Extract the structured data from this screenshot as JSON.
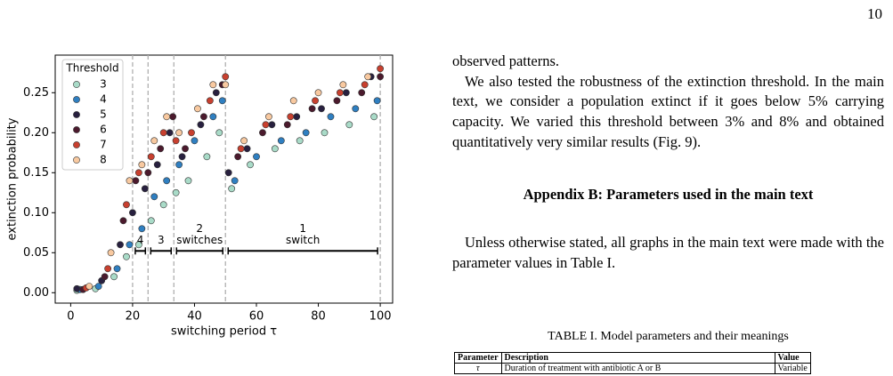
{
  "page_number": "10",
  "chart_data": {
    "type": "scatter",
    "xlabel": "switching period τ",
    "ylabel": "extinction probability",
    "xlim": [
      -5,
      104
    ],
    "ylim": [
      -0.013,
      0.297
    ],
    "xticks": [
      0,
      20,
      40,
      60,
      80,
      100
    ],
    "yticks": [
      {
        "value": 0,
        "label": "0.00"
      },
      {
        "value": 0.05,
        "label": "0.05"
      },
      {
        "value": 0.1,
        "label": "0.10"
      },
      {
        "value": 0.15,
        "label": "0.15"
      },
      {
        "value": 0.2,
        "label": "0.20"
      },
      {
        "value": 0.25,
        "label": "0.25"
      }
    ],
    "legend_title": "Threshold",
    "legend": "upper left",
    "vlines": [
      20,
      25,
      33.33,
      50,
      100
    ],
    "vline_color": "#b0b0b0",
    "regions": [
      {
        "label": [
          "4"
        ],
        "from": 20,
        "to": 25
      },
      {
        "label": [
          "3"
        ],
        "from": 25,
        "to": 33.33
      },
      {
        "label": [
          "2",
          "switches"
        ],
        "from": 33.33,
        "to": 50
      },
      {
        "label": [
          "1",
          "switch"
        ],
        "from": 50,
        "to": 100
      }
    ],
    "series": [
      {
        "name": "3",
        "color": "#a9dbc8",
        "x": [
          2,
          8,
          14,
          18,
          22,
          26,
          30,
          34,
          38,
          44,
          48,
          52,
          58,
          66,
          74,
          82,
          90,
          98
        ],
        "values": [
          0.003,
          0.005,
          0.02,
          0.045,
          0.06,
          0.09,
          0.11,
          0.125,
          0.14,
          0.17,
          0.2,
          0.13,
          0.16,
          0.18,
          0.19,
          0.2,
          0.21,
          0.22
        ]
      },
      {
        "name": "4",
        "color": "#2f7fc1",
        "x": [
          3,
          9,
          15,
          19,
          23,
          27,
          31,
          35,
          40,
          46,
          49,
          53,
          60,
          68,
          76,
          84,
          92,
          99
        ],
        "values": [
          0.004,
          0.008,
          0.03,
          0.06,
          0.08,
          0.12,
          0.14,
          0.16,
          0.19,
          0.22,
          0.24,
          0.14,
          0.17,
          0.19,
          0.2,
          0.22,
          0.23,
          0.24
        ]
      },
      {
        "name": "5",
        "color": "#28203f",
        "x": [
          2,
          10,
          16,
          20,
          24,
          28,
          32,
          36,
          42,
          47,
          51,
          57,
          65,
          73,
          81,
          89,
          97
        ],
        "values": [
          0.005,
          0.015,
          0.06,
          0.1,
          0.13,
          0.16,
          0.2,
          0.17,
          0.21,
          0.25,
          0.15,
          0.18,
          0.21,
          0.22,
          0.23,
          0.25,
          0.27
        ]
      },
      {
        "name": "6",
        "color": "#4b1a2d",
        "x": [
          4,
          11,
          17,
          21,
          25,
          29,
          33,
          37,
          43,
          49,
          54,
          62,
          70,
          78,
          86,
          94,
          100
        ],
        "values": [
          0.004,
          0.02,
          0.09,
          0.14,
          0.15,
          0.18,
          0.22,
          0.18,
          0.22,
          0.26,
          0.17,
          0.2,
          0.21,
          0.23,
          0.24,
          0.25,
          0.27
        ]
      },
      {
        "name": "7",
        "color": "#c8402f",
        "x": [
          5,
          12,
          18,
          22,
          26,
          30,
          34,
          39,
          45,
          50,
          55,
          63,
          71,
          79,
          87,
          95,
          100
        ],
        "values": [
          0.006,
          0.03,
          0.11,
          0.15,
          0.17,
          0.2,
          0.19,
          0.2,
          0.24,
          0.27,
          0.18,
          0.21,
          0.22,
          0.24,
          0.25,
          0.26,
          0.28
        ]
      },
      {
        "name": "8",
        "color": "#f8c9a0",
        "x": [
          6,
          13,
          19,
          23,
          27,
          31,
          35,
          41,
          46,
          50,
          56,
          64,
          72,
          80,
          88,
          96
        ],
        "values": [
          0.008,
          0.05,
          0.14,
          0.16,
          0.19,
          0.22,
          0.2,
          0.23,
          0.26,
          0.26,
          0.19,
          0.22,
          0.24,
          0.25,
          0.26,
          0.27
        ]
      }
    ]
  },
  "paragraphs": [
    "observed patterns.",
    "We also tested the robustness of the extinction threshold. In the main text, we consider a population extinct if it goes below 5% carrying capacity. We varied this threshold between 3% and 8% and obtained quantitatively very similar results (Fig. 9)."
  ],
  "appendix_heading": "Appendix B: Parameters used in the main text",
  "paragraph_after": "Unless otherwise stated, all graphs in the main text were made with the parameter values in Table I.",
  "table": {
    "caption": "TABLE I. Model parameters and their meanings",
    "header": [
      "Parameter",
      "Description",
      "Value"
    ],
    "rows": [
      [
        "τ",
        "Duration of treatment with antibiotic A or B",
        "Variable"
      ]
    ]
  }
}
